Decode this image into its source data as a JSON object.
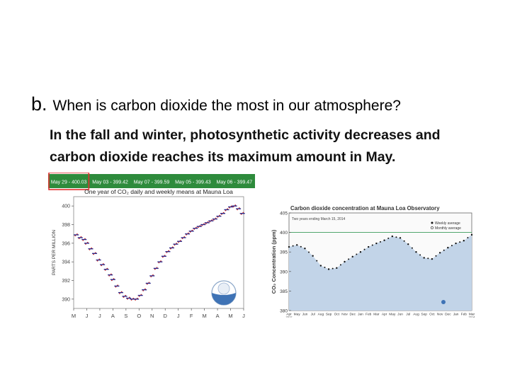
{
  "slide": {
    "question_marker": "b.",
    "question": "When is carbon dioxide the most in our atmosphere?",
    "answer_line1": "In the fall and winter, photosynthetic activity decreases and",
    "answer_line2": "carbon dioxide reaches its maximum amount in May."
  },
  "chart_data": [
    {
      "type": "scatter",
      "title": "One year of CO₂ daily and weekly means at Mauna Loa",
      "ylabel": "PARTS PER MILLION",
      "xlabel": "",
      "ylim": [
        389,
        401
      ],
      "yticks": [
        390,
        392,
        394,
        396,
        398,
        400
      ],
      "months": [
        "M",
        "J",
        "J",
        "A",
        "S",
        "O",
        "N",
        "D",
        "J",
        "F",
        "M",
        "A",
        "M",
        "J"
      ],
      "readings": [
        {
          "label": "May 29 - 400.03",
          "highlighted": true
        },
        {
          "label": "May 03 - 399.42",
          "highlighted": false
        },
        {
          "label": "May 07 - 399.59",
          "highlighted": false
        },
        {
          "label": "May 05 - 399.43",
          "highlighted": false
        },
        {
          "label": "May 06 - 399.47",
          "highlighted": false
        }
      ],
      "colors": {
        "daily": "#cc2222",
        "weekly": "#2a2a8a",
        "header": "#2e8b3c",
        "highlight": "#e03030"
      },
      "logo": "noaa-logo",
      "series": [
        {
          "x": [
            0.2,
            0.5,
            0.8,
            1.0,
            1.3,
            1.6,
            1.9,
            2.2,
            2.5,
            2.8,
            3.0,
            3.3,
            3.6,
            3.9,
            4.2,
            4.5,
            4.8,
            5.1,
            5.4,
            5.7,
            6.0,
            6.3,
            6.6,
            6.9,
            7.2,
            7.5,
            7.8,
            8.1,
            8.4,
            8.7,
            9.0,
            9.3,
            9.6,
            9.9,
            10.2,
            10.5,
            10.8,
            11.1,
            11.4,
            11.7,
            12.0,
            12.3,
            12.6,
            12.9
          ],
          "y": [
            396.9,
            396.6,
            396.4,
            396.0,
            395.4,
            394.9,
            394.2,
            393.7,
            393.2,
            392.6,
            392.1,
            391.4,
            390.7,
            390.3,
            390.1,
            390.0,
            390.0,
            390.4,
            391.0,
            391.7,
            392.5,
            393.3,
            394.0,
            394.6,
            395.1,
            395.5,
            395.9,
            396.2,
            396.6,
            397.0,
            397.3,
            397.6,
            397.8,
            398.0,
            398.2,
            398.4,
            398.6,
            398.9,
            399.2,
            399.6,
            399.9,
            400.0,
            399.7,
            399.2
          ]
        }
      ]
    },
    {
      "type": "area",
      "title": "Carbon dioxide concentration at Mauna Loa Observatory",
      "subtitle": "Two years ending March 15, 2014",
      "ylabel": "CO₂ Concentration (ppm)",
      "ylim": [
        380,
        405
      ],
      "yticks": [
        380,
        385,
        390,
        395,
        400,
        405
      ],
      "reference_line": 400,
      "legend": [
        "Weekly average",
        "Monthly average"
      ],
      "legend_position": "top-right",
      "months": [
        "Apr",
        "May",
        "Jun",
        "Jul",
        "Aug",
        "Sep",
        "Oct",
        "Nov",
        "Dec",
        "Jan",
        "Feb",
        "Mar",
        "Apr",
        "May",
        "Jun",
        "Jul",
        "Aug",
        "Sep",
        "Oct",
        "Nov",
        "Dec",
        "Jan",
        "Feb",
        "Mar"
      ],
      "year_labels": [
        "2012",
        "2014"
      ],
      "colors": {
        "fill": "#c2d4e8",
        "points": "#111111",
        "reference": "#3a9a5a"
      },
      "series": [
        {
          "name": "Weekly average",
          "x": [
            0,
            1,
            2,
            3,
            4,
            5,
            6,
            7,
            8,
            9,
            10,
            11,
            12,
            13,
            14,
            15,
            16,
            17,
            18,
            19,
            20,
            21,
            22,
            23
          ],
          "y": [
            396.3,
            396.8,
            395.9,
            394.0,
            391.5,
            390.6,
            390.9,
            392.5,
            393.8,
            395.0,
            396.3,
            397.2,
            398.0,
            399.0,
            398.6,
            397.0,
            395.0,
            393.5,
            393.2,
            394.8,
            396.1,
            397.2,
            397.9,
            399.4
          ]
        }
      ]
    }
  ]
}
